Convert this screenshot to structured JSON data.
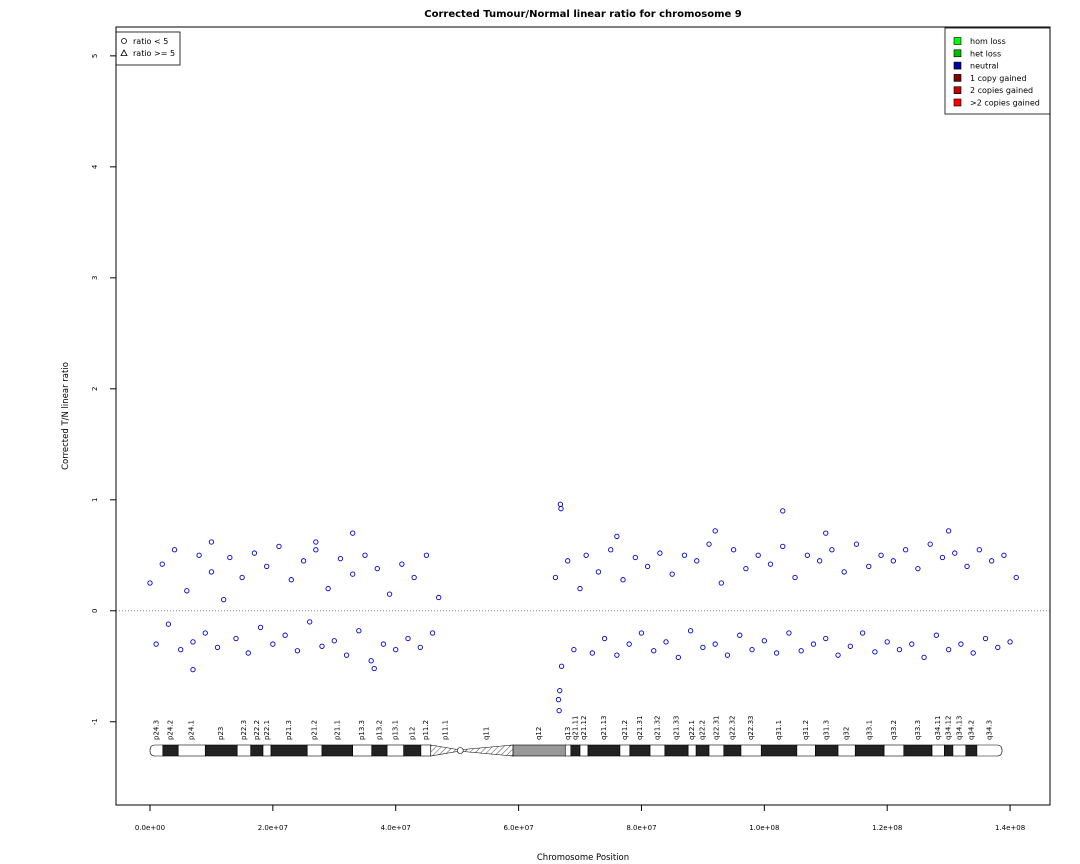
{
  "chart_data": {
    "type": "scatter",
    "title": "Corrected Tumour/Normal linear ratio for chromosome  9",
    "x_label": "Chromosome Position",
    "y_label": "Corrected T/N linear ratio",
    "xlim": [
      -5530000,
      146500000
    ],
    "ylim": [
      -1.75,
      5.26
    ],
    "xticks": [
      {
        "value": 0,
        "label": "0.0e+00"
      },
      {
        "value": 20000000,
        "label": "2.0e+07"
      },
      {
        "value": 40000000,
        "label": "4.0e+07"
      },
      {
        "value": 60000000,
        "label": "6.0e+07"
      },
      {
        "value": 80000000,
        "label": "8.0e+07"
      },
      {
        "value": 100000000,
        "label": "1.0e+08"
      },
      {
        "value": 120000000,
        "label": "1.2e+08"
      },
      {
        "value": 140000000,
        "label": "1.4e+08"
      }
    ],
    "yticks": [
      -1,
      0,
      1,
      2,
      3,
      4,
      5
    ],
    "hline": 0,
    "color": "#0000cc",
    "x": [
      0,
      1000000,
      2000000,
      3000000,
      4000000,
      5000000,
      6000000,
      7000000,
      8000000,
      9000000,
      10000000,
      11000000,
      12000000,
      13000000,
      14000000,
      15000000,
      16000000,
      17000000,
      18000000,
      19000000,
      20000000,
      21000000,
      22000000,
      23000000,
      24000000,
      25000000,
      26000000,
      27000000,
      28000000,
      29000000,
      30000000,
      31000000,
      32000000,
      33000000,
      34000000,
      35000000,
      36000000,
      37000000,
      38000000,
      39000000,
      40000000,
      41000000,
      42000000,
      43000000,
      44000000,
      45000000,
      46000000,
      47000000,
      66000000,
      67000000,
      68000000,
      69000000,
      70000000,
      71000000,
      72000000,
      73000000,
      74000000,
      75000000,
      76000000,
      77000000,
      78000000,
      79000000,
      80000000,
      81000000,
      82000000,
      83000000,
      84000000,
      85000000,
      86000000,
      87000000,
      88000000,
      89000000,
      90000000,
      91000000,
      92000000,
      93000000,
      94000000,
      95000000,
      96000000,
      97000000,
      98000000,
      99000000,
      100000000,
      101000000,
      102000000,
      103000000,
      104000000,
      105000000,
      106000000,
      107000000,
      108000000,
      109000000,
      110000000,
      111000000,
      112000000,
      113000000,
      114000000,
      115000000,
      116000000,
      117000000,
      118000000,
      119000000,
      120000000,
      121000000,
      122000000,
      123000000,
      124000000,
      125000000,
      126000000,
      127000000,
      128000000,
      129000000,
      130000000,
      131000000,
      132000000,
      133000000,
      134000000,
      135000000,
      136000000,
      137000000,
      138000000,
      139000000,
      140000000,
      141000000,
      66800000,
      66900000,
      103000000,
      66700000,
      66600000,
      66500000,
      7000000,
      36500000,
      33000000,
      110000000,
      130000000,
      76000000,
      92000000,
      10000000,
      27000000
    ],
    "values": [
      0.25,
      -0.3,
      0.42,
      -0.12,
      0.55,
      -0.35,
      0.18,
      -0.28,
      0.5,
      -0.2,
      0.35,
      -0.33,
      0.1,
      0.48,
      -0.25,
      0.3,
      -0.38,
      0.52,
      -0.15,
      0.4,
      -0.3,
      0.58,
      -0.22,
      0.28,
      -0.36,
      0.45,
      -0.1,
      0.55,
      -0.32,
      0.2,
      -0.27,
      0.47,
      -0.4,
      0.33,
      -0.18,
      0.5,
      -0.45,
      0.38,
      -0.3,
      0.15,
      -0.35,
      0.42,
      -0.25,
      0.3,
      -0.33,
      0.5,
      -0.2,
      0.12,
      0.3,
      -0.5,
      0.45,
      -0.35,
      0.2,
      0.5,
      -0.38,
      0.35,
      -0.25,
      0.55,
      -0.4,
      0.28,
      -0.3,
      0.48,
      -0.2,
      0.4,
      -0.36,
      0.52,
      -0.28,
      0.33,
      -0.42,
      0.5,
      -0.18,
      0.45,
      -0.33,
      0.6,
      -0.3,
      0.25,
      -0.4,
      0.55,
      -0.22,
      0.38,
      -0.35,
      0.5,
      -0.27,
      0.42,
      -0.38,
      0.58,
      -0.2,
      0.3,
      -0.36,
      0.5,
      -0.3,
      0.45,
      -0.25,
      0.55,
      -0.4,
      0.35,
      -0.32,
      0.6,
      -0.2,
      0.4,
      -0.37,
      0.5,
      -0.28,
      0.45,
      -0.35,
      0.55,
      -0.3,
      0.38,
      -0.42,
      0.6,
      -0.22,
      0.48,
      -0.35,
      0.52,
      -0.3,
      0.4,
      -0.38,
      0.55,
      -0.25,
      0.45,
      -0.33,
      0.5,
      -0.28,
      0.3,
      0.96,
      0.92,
      0.9,
      -0.72,
      -0.9,
      -0.8,
      -0.53,
      -0.52,
      0.7,
      0.7,
      0.72,
      0.67,
      0.72,
      0.62,
      0.62
    ],
    "shape_legend": [
      "ratio < 5",
      "ratio >= 5"
    ],
    "legend": [
      {
        "name": "hom loss",
        "color": "#00ff00"
      },
      {
        "name": "het loss",
        "color": "#00c000"
      },
      {
        "name": "neutral",
        "color": "#0000a0"
      },
      {
        "name": "1 copy gained",
        "color": "#800000"
      },
      {
        "name": "2 copies gained",
        "color": "#c00000"
      },
      {
        "name": ">2 copies gained",
        "color": "#ff0000"
      }
    ],
    "ideogram": [
      {
        "name": "p24.3",
        "start": 0,
        "end": 2100000,
        "stain": "gneg"
      },
      {
        "name": "p24.2",
        "start": 2100000,
        "end": 4600000,
        "stain": "gpos"
      },
      {
        "name": "p24.1",
        "start": 4600000,
        "end": 9000000,
        "stain": "gneg"
      },
      {
        "name": "p23",
        "start": 9000000,
        "end": 14200000,
        "stain": "gpos"
      },
      {
        "name": "p22.3",
        "start": 14200000,
        "end": 16400000,
        "stain": "gneg"
      },
      {
        "name": "p22.2",
        "start": 16400000,
        "end": 18400000,
        "stain": "gpos"
      },
      {
        "name": "p22.1",
        "start": 18400000,
        "end": 19700000,
        "stain": "gneg"
      },
      {
        "name": "p21.3",
        "start": 19700000,
        "end": 25600000,
        "stain": "gpos"
      },
      {
        "name": "p21.2",
        "start": 25600000,
        "end": 28000000,
        "stain": "gneg"
      },
      {
        "name": "p21.1",
        "start": 28000000,
        "end": 33000000,
        "stain": "gpos"
      },
      {
        "name": "p13.3",
        "start": 33000000,
        "end": 36100000,
        "stain": "gneg"
      },
      {
        "name": "p13.2",
        "start": 36100000,
        "end": 38600000,
        "stain": "gpos"
      },
      {
        "name": "p13.1",
        "start": 38600000,
        "end": 41300000,
        "stain": "gneg"
      },
      {
        "name": "p12",
        "start": 41300000,
        "end": 44100000,
        "stain": "gpos"
      },
      {
        "name": "p11.2",
        "start": 44100000,
        "end": 45700000,
        "stain": "gneg"
      },
      {
        "name": "p11.1",
        "start": 45700000,
        "end": 50500000,
        "stain": "acen"
      },
      {
        "name": "q11",
        "start": 50500000,
        "end": 59100000,
        "stain": "acen"
      },
      {
        "name": "q12",
        "start": 59100000,
        "end": 67600000,
        "stain": "gvar"
      },
      {
        "name": "q13",
        "start": 67600000,
        "end": 68500000,
        "stain": "gneg"
      },
      {
        "name": "q21.11",
        "start": 68500000,
        "end": 70000000,
        "stain": "gpos"
      },
      {
        "name": "q21.12",
        "start": 70000000,
        "end": 71300000,
        "stain": "gneg"
      },
      {
        "name": "q21.13",
        "start": 71300000,
        "end": 76500000,
        "stain": "gpos"
      },
      {
        "name": "q21.2",
        "start": 76500000,
        "end": 78100000,
        "stain": "gneg"
      },
      {
        "name": "q21.31",
        "start": 78100000,
        "end": 81400000,
        "stain": "gpos"
      },
      {
        "name": "q21.32",
        "start": 81400000,
        "end": 83800000,
        "stain": "gneg"
      },
      {
        "name": "q21.33",
        "start": 83800000,
        "end": 87600000,
        "stain": "gpos"
      },
      {
        "name": "q22.1",
        "start": 87600000,
        "end": 88900000,
        "stain": "gneg"
      },
      {
        "name": "q22.2",
        "start": 88900000,
        "end": 91000000,
        "stain": "gpos"
      },
      {
        "name": "q22.31",
        "start": 91000000,
        "end": 93400000,
        "stain": "gneg"
      },
      {
        "name": "q22.32",
        "start": 93400000,
        "end": 96200000,
        "stain": "gpos"
      },
      {
        "name": "q22.33",
        "start": 96200000,
        "end": 99500000,
        "stain": "gneg"
      },
      {
        "name": "q31.1",
        "start": 99500000,
        "end": 105300000,
        "stain": "gpos"
      },
      {
        "name": "q31.2",
        "start": 105300000,
        "end": 108300000,
        "stain": "gneg"
      },
      {
        "name": "q31.3",
        "start": 108300000,
        "end": 112000000,
        "stain": "gpos"
      },
      {
        "name": "q32",
        "start": 112000000,
        "end": 114800000,
        "stain": "gneg"
      },
      {
        "name": "q33.1",
        "start": 114800000,
        "end": 119500000,
        "stain": "gpos"
      },
      {
        "name": "q33.2",
        "start": 119500000,
        "end": 122700000,
        "stain": "gneg"
      },
      {
        "name": "q33.3",
        "start": 122700000,
        "end": 127300000,
        "stain": "gpos"
      },
      {
        "name": "q34.11",
        "start": 127300000,
        "end": 129300000,
        "stain": "gneg"
      },
      {
        "name": "q34.12",
        "start": 129300000,
        "end": 130700000,
        "stain": "gpos"
      },
      {
        "name": "q34.13",
        "start": 130700000,
        "end": 132800000,
        "stain": "gneg"
      },
      {
        "name": "q34.2",
        "start": 132800000,
        "end": 134600000,
        "stain": "gpos"
      },
      {
        "name": "q34.3",
        "start": 134600000,
        "end": 138700000,
        "stain": "gneg"
      }
    ]
  }
}
